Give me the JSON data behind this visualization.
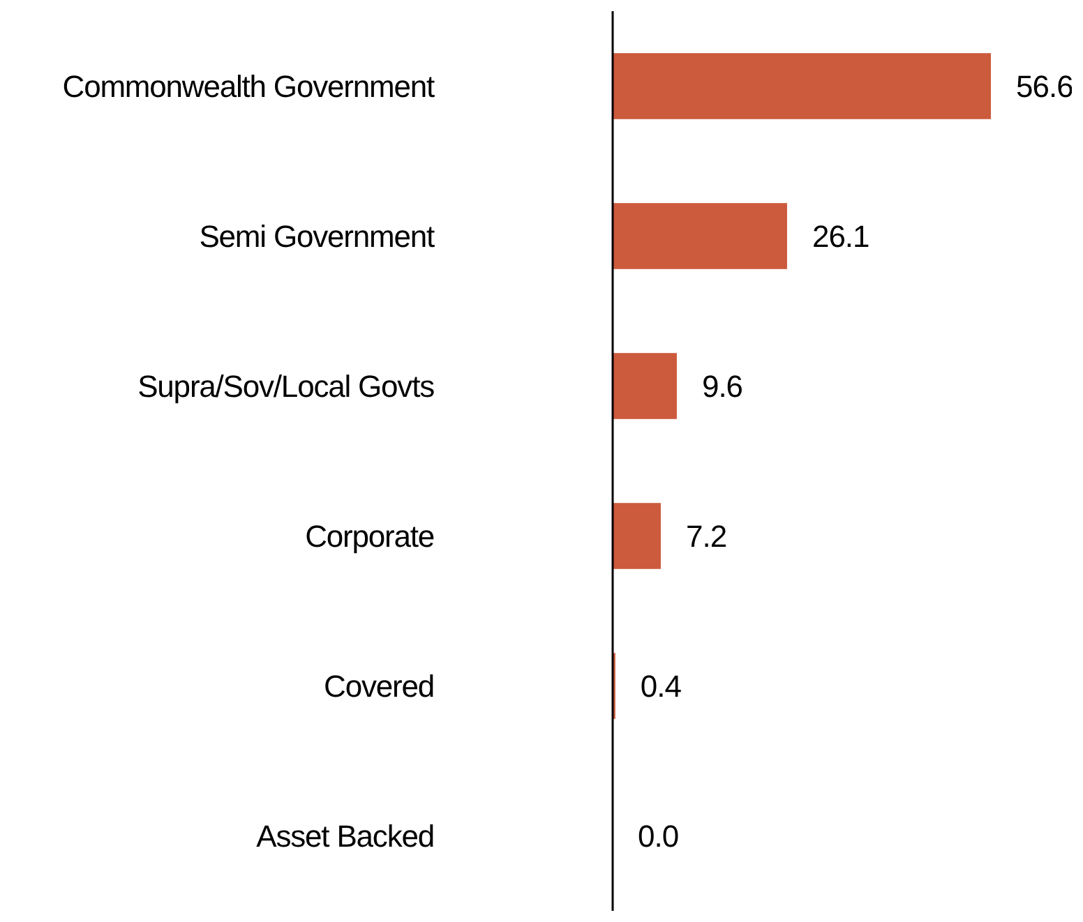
{
  "chart_data": {
    "type": "bar",
    "orientation": "horizontal",
    "categories": [
      "Commonwealth Government",
      "Semi Government",
      "Supra/Sov/Local Govts",
      "Corporate",
      "Covered",
      "Asset Backed"
    ],
    "values": [
      56.6,
      26.1,
      9.6,
      7.2,
      0.4,
      0.0
    ],
    "value_labels": [
      "56.6",
      "26.1",
      "9.6",
      "7.2",
      "0.4",
      "0.0"
    ],
    "color": "#cc5a3c",
    "tick_labels": "y"
  }
}
